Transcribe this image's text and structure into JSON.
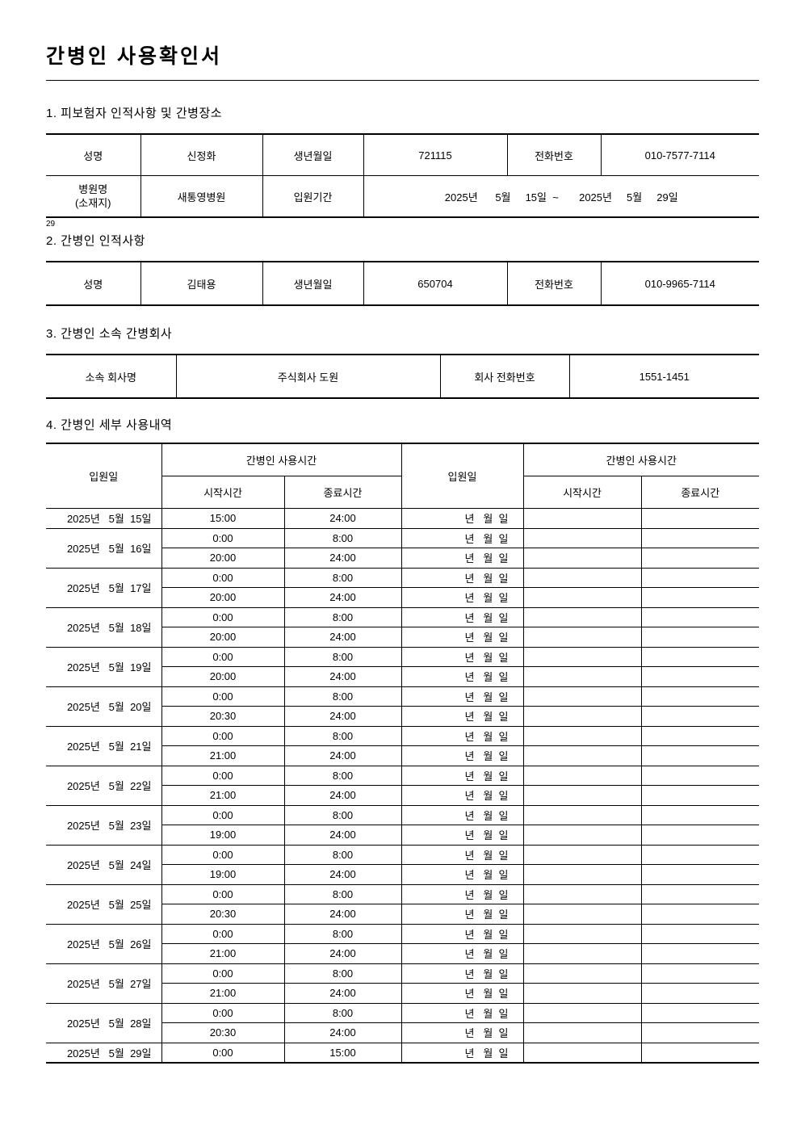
{
  "page": {
    "title": "간병인  사용확인서",
    "page_note": "29"
  },
  "section1": {
    "heading": "1. 피보험자  인적사항  및  간병장소",
    "table": {
      "name_label": "성명",
      "name_value": "신정화",
      "birth_label": "생년월일",
      "birth_value": "721115",
      "phone_label": "전화번호",
      "phone_value": "010-7577-7114",
      "hospital_label_line1": "병원명",
      "hospital_label_line2": "(소재지)",
      "hospital_value": "새통영병원",
      "period_label": "입원기간",
      "period_value": "2025년      5월     15일  ~       2025년     5월     29일"
    }
  },
  "section2": {
    "heading": "2. 간병인  인적사항",
    "table": {
      "name_label": "성명",
      "name_value": "김태용",
      "birth_label": "생년월일",
      "birth_value": "650704",
      "phone_label": "전화번호",
      "phone_value": "010-9965-7114"
    }
  },
  "section3": {
    "heading": "3. 간병인  소속  간병회사",
    "table": {
      "company_label": "소속  회사명",
      "company_value": "주식회사  도원",
      "phone_label": "회사  전화번호",
      "phone_value": "1551-1451"
    }
  },
  "section4": {
    "heading": "4. 간병인  세부  사용내역",
    "table": {
      "admission_col": "입원일",
      "usage_col": "간병인  사용시간",
      "start_col": "시작시간",
      "end_col": "종료시간",
      "empty_date_placeholder": "년   월  일",
      "groups": [
        {
          "date": "2025년   5월  15일",
          "times": [
            [
              "15:00",
              "24:00"
            ]
          ]
        },
        {
          "date": "2025년   5월  16일",
          "times": [
            [
              "0:00",
              "8:00"
            ],
            [
              "20:00",
              "24:00"
            ]
          ]
        },
        {
          "date": "2025년   5월  17일",
          "times": [
            [
              "0:00",
              "8:00"
            ],
            [
              "20:00",
              "24:00"
            ]
          ]
        },
        {
          "date": "2025년   5월  18일",
          "times": [
            [
              "0:00",
              "8:00"
            ],
            [
              "20:00",
              "24:00"
            ]
          ]
        },
        {
          "date": "2025년   5월  19일",
          "times": [
            [
              "0:00",
              "8:00"
            ],
            [
              "20:00",
              "24:00"
            ]
          ]
        },
        {
          "date": "2025년   5월  20일",
          "times": [
            [
              "0:00",
              "8:00"
            ],
            [
              "20:30",
              "24:00"
            ]
          ]
        },
        {
          "date": "2025년   5월  21일",
          "times": [
            [
              "0:00",
              "8:00"
            ],
            [
              "21:00",
              "24:00"
            ]
          ]
        },
        {
          "date": "2025년   5월  22일",
          "times": [
            [
              "0:00",
              "8:00"
            ],
            [
              "21:00",
              "24:00"
            ]
          ]
        },
        {
          "date": "2025년   5월  23일",
          "times": [
            [
              "0:00",
              "8:00"
            ],
            [
              "19:00",
              "24:00"
            ]
          ]
        },
        {
          "date": "2025년   5월  24일",
          "times": [
            [
              "0:00",
              "8:00"
            ],
            [
              "19:00",
              "24:00"
            ]
          ]
        },
        {
          "date": "2025년   5월  25일",
          "times": [
            [
              "0:00",
              "8:00"
            ],
            [
              "20:30",
              "24:00"
            ]
          ]
        },
        {
          "date": "2025년   5월  26일",
          "times": [
            [
              "0:00",
              "8:00"
            ],
            [
              "21:00",
              "24:00"
            ]
          ]
        },
        {
          "date": "2025년   5월  27일",
          "times": [
            [
              "0:00",
              "8:00"
            ],
            [
              "21:00",
              "24:00"
            ]
          ]
        },
        {
          "date": "2025년   5월  28일",
          "times": [
            [
              "0:00",
              "8:00"
            ],
            [
              "20:30",
              "24:00"
            ]
          ]
        },
        {
          "date": "2025년   5월  29일",
          "times": [
            [
              "0:00",
              "15:00"
            ]
          ]
        }
      ]
    }
  }
}
